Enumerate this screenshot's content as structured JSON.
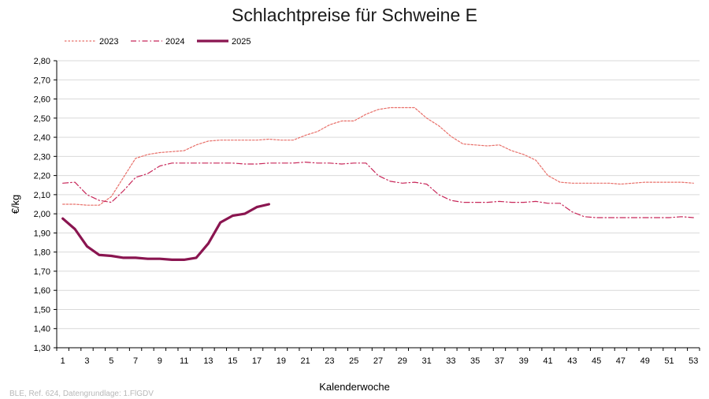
{
  "chart_data": {
    "type": "line",
    "title": "Schlachtpreise für Schweine E",
    "xlabel": "Kalenderwoche",
    "ylabel": "€/kg",
    "xlim": [
      1,
      53
    ],
    "ylim": [
      1.3,
      2.8
    ],
    "y_ticks": [
      "1,30",
      "1,40",
      "1,50",
      "1,60",
      "1,70",
      "1,80",
      "1,90",
      "2,00",
      "2,10",
      "2,20",
      "2,30",
      "2,40",
      "2,50",
      "2,60",
      "2,70",
      "2,80"
    ],
    "x_ticks": [
      "1",
      "3",
      "5",
      "7",
      "9",
      "11",
      "13",
      "15",
      "17",
      "19",
      "21",
      "23",
      "25",
      "27",
      "29",
      "31",
      "33",
      "35",
      "37",
      "39",
      "41",
      "43",
      "45",
      "47",
      "49",
      "51",
      "53"
    ],
    "grid": "horizontal",
    "legend_position": "top-left",
    "series": [
      {
        "name": "2023",
        "color": "#e8706a",
        "style": "dotted",
        "x": [
          1,
          2,
          3,
          4,
          5,
          6,
          7,
          8,
          9,
          10,
          11,
          12,
          13,
          14,
          15,
          16,
          17,
          18,
          19,
          20,
          21,
          22,
          23,
          24,
          25,
          26,
          27,
          28,
          29,
          30,
          31,
          32,
          33,
          34,
          35,
          36,
          37,
          38,
          39,
          40,
          41,
          42,
          43,
          44,
          45,
          46,
          47,
          48,
          49,
          50,
          51,
          52,
          53
        ],
        "values": [
          2.05,
          2.05,
          2.045,
          2.045,
          2.09,
          2.19,
          2.29,
          2.31,
          2.32,
          2.325,
          2.33,
          2.36,
          2.38,
          2.385,
          2.385,
          2.385,
          2.385,
          2.39,
          2.385,
          2.385,
          2.41,
          2.43,
          2.465,
          2.485,
          2.485,
          2.52,
          2.545,
          2.555,
          2.555,
          2.555,
          2.5,
          2.46,
          2.405,
          2.365,
          2.36,
          2.355,
          2.36,
          2.33,
          2.31,
          2.28,
          2.2,
          2.165,
          2.16,
          2.16,
          2.16,
          2.16,
          2.155,
          2.16,
          2.165,
          2.165,
          2.165,
          2.165,
          2.16
        ]
      },
      {
        "name": "2024",
        "color": "#c8285a",
        "style": "dashdot",
        "x": [
          1,
          2,
          3,
          4,
          5,
          6,
          7,
          8,
          9,
          10,
          11,
          12,
          13,
          14,
          15,
          16,
          17,
          18,
          19,
          20,
          21,
          22,
          23,
          24,
          25,
          26,
          27,
          28,
          29,
          30,
          31,
          32,
          33,
          34,
          35,
          36,
          37,
          38,
          39,
          40,
          41,
          42,
          43,
          44,
          45,
          46,
          47,
          48,
          49,
          50,
          51,
          52,
          53
        ],
        "values": [
          2.16,
          2.165,
          2.1,
          2.07,
          2.06,
          2.12,
          2.19,
          2.21,
          2.25,
          2.265,
          2.265,
          2.265,
          2.265,
          2.265,
          2.265,
          2.26,
          2.26,
          2.265,
          2.265,
          2.265,
          2.27,
          2.265,
          2.265,
          2.26,
          2.265,
          2.265,
          2.2,
          2.17,
          2.16,
          2.165,
          2.155,
          2.1,
          2.07,
          2.06,
          2.06,
          2.06,
          2.065,
          2.06,
          2.06,
          2.065,
          2.055,
          2.055,
          2.01,
          1.985,
          1.98,
          1.98,
          1.98,
          1.98,
          1.98,
          1.98,
          1.98,
          1.985,
          1.98
        ]
      },
      {
        "name": "2025",
        "color": "#8a1550",
        "style": "solid",
        "x": [
          1,
          2,
          3,
          4,
          5,
          6,
          7,
          8,
          9,
          10,
          11,
          12,
          13,
          14,
          15,
          16,
          17,
          18
        ],
        "values": [
          1.975,
          1.92,
          1.83,
          1.785,
          1.78,
          1.77,
          1.77,
          1.765,
          1.765,
          1.76,
          1.76,
          1.77,
          1.845,
          1.955,
          1.99,
          2.0,
          2.035,
          2.05
        ]
      }
    ]
  },
  "footnote": "BLE, Ref. 624, Datengrundlage: 1.FlGDV"
}
